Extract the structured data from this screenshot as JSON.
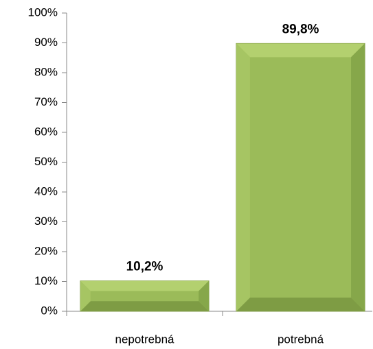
{
  "chart_data": {
    "type": "bar",
    "categories": [
      "nepotrebná",
      "potrebná"
    ],
    "values": [
      10.2,
      89.8
    ],
    "value_labels": [
      "10,2%",
      "89,8%"
    ],
    "color": "#9bbb59",
    "ylim": [
      0,
      100
    ],
    "yticks": [
      {
        "value": 0,
        "label": "0%"
      },
      {
        "value": 10,
        "label": "10%"
      },
      {
        "value": 20,
        "label": "20%"
      },
      {
        "value": 30,
        "label": "30%"
      },
      {
        "value": 40,
        "label": "40%"
      },
      {
        "value": 50,
        "label": "50%"
      },
      {
        "value": 60,
        "label": "60%"
      },
      {
        "value": 70,
        "label": "70%"
      },
      {
        "value": 80,
        "label": "80%"
      },
      {
        "value": 90,
        "label": "90%"
      },
      {
        "value": 100,
        "label": "100%"
      }
    ],
    "grid": false
  }
}
